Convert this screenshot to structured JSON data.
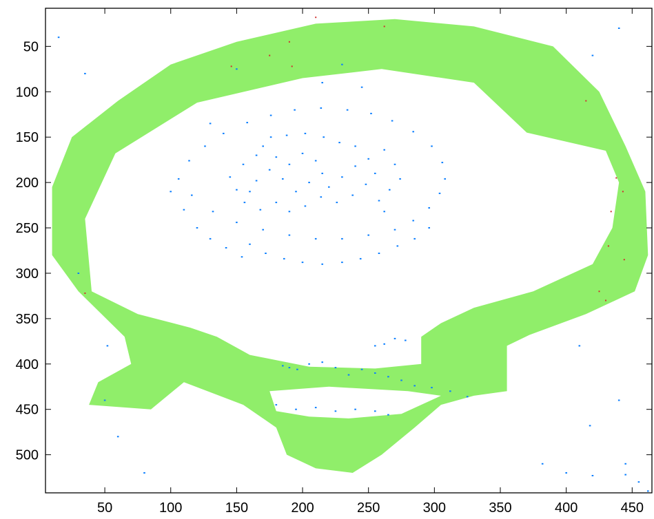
{
  "chart_data": {
    "type": "heatmap",
    "title": "",
    "xlabel": "",
    "ylabel": "",
    "xlim": [
      5,
      465
    ],
    "ylim": [
      542,
      8
    ],
    "x_ticks": [
      50,
      100,
      150,
      200,
      250,
      300,
      350,
      400,
      450
    ],
    "y_ticks": [
      50,
      100,
      150,
      200,
      250,
      300,
      350,
      400,
      450,
      500
    ],
    "grid": false,
    "legend": "none",
    "series": [
      {
        "region": "outer-ring",
        "color": "#90ee6a",
        "outer_boundary": [
          [
            10,
            205
          ],
          [
            25,
            150
          ],
          [
            60,
            110
          ],
          [
            100,
            70
          ],
          [
            150,
            45
          ],
          [
            210,
            25
          ],
          [
            270,
            20
          ],
          [
            330,
            28
          ],
          [
            390,
            50
          ],
          [
            425,
            100
          ],
          [
            445,
            160
          ],
          [
            460,
            210
          ],
          [
            462,
            280
          ],
          [
            452,
            320
          ],
          [
            415,
            345
          ],
          [
            372,
            368
          ],
          [
            355,
            380
          ],
          [
            355,
            430
          ],
          [
            330,
            435
          ],
          [
            305,
            445
          ],
          [
            285,
            470
          ],
          [
            260,
            500
          ],
          [
            238,
            520
          ],
          [
            210,
            515
          ],
          [
            188,
            500
          ],
          [
            180,
            470
          ],
          [
            155,
            445
          ],
          [
            110,
            420
          ],
          [
            85,
            450
          ],
          [
            38,
            445
          ],
          [
            45,
            420
          ],
          [
            70,
            400
          ],
          [
            65,
            370
          ],
          [
            30,
            320
          ],
          [
            10,
            280
          ]
        ],
        "inner_boundary": [
          [
            35,
            240
          ],
          [
            58,
            168
          ],
          [
            120,
            112
          ],
          [
            200,
            85
          ],
          [
            260,
            75
          ],
          [
            330,
            90
          ],
          [
            370,
            145
          ],
          [
            430,
            165
          ],
          [
            440,
            200
          ],
          [
            435,
            250
          ],
          [
            420,
            290
          ],
          [
            375,
            320
          ],
          [
            330,
            338
          ],
          [
            305,
            355
          ],
          [
            290,
            370
          ],
          [
            290,
            400
          ],
          [
            255,
            405
          ],
          [
            205,
            403
          ],
          [
            160,
            390
          ],
          [
            135,
            370
          ],
          [
            115,
            360
          ],
          [
            75,
            345
          ],
          [
            40,
            320
          ]
        ],
        "lower_hole": [
          [
            175,
            430
          ],
          [
            220,
            425
          ],
          [
            280,
            430
          ],
          [
            305,
            435
          ],
          [
            275,
            455
          ],
          [
            235,
            460
          ],
          [
            205,
            458
          ],
          [
            180,
            452
          ]
        ]
      },
      {
        "region": "scattered-edges",
        "color": "#0a7eff",
        "points": [
          [
            106,
            196
          ],
          [
            116,
            214
          ],
          [
            132,
            232
          ],
          [
            150,
            244
          ],
          [
            170,
            252
          ],
          [
            190,
            258
          ],
          [
            210,
            262
          ],
          [
            230,
            262
          ],
          [
            250,
            258
          ],
          [
            270,
            252
          ],
          [
            284,
            242
          ],
          [
            296,
            228
          ],
          [
            304,
            212
          ],
          [
            308,
            196
          ],
          [
            306,
            178
          ],
          [
            298,
            160
          ],
          [
            284,
            144
          ],
          [
            268,
            132
          ],
          [
            252,
            124
          ],
          [
            234,
            120
          ],
          [
            214,
            118
          ],
          [
            194,
            120
          ],
          [
            176,
            126
          ],
          [
            158,
            134
          ],
          [
            140,
            146
          ],
          [
            126,
            160
          ],
          [
            114,
            176
          ],
          [
            170,
            160
          ],
          [
            180,
            172
          ],
          [
            190,
            180
          ],
          [
            200,
            168
          ],
          [
            210,
            176
          ],
          [
            215,
            190
          ],
          [
            205,
            200
          ],
          [
            195,
            210
          ],
          [
            185,
            196
          ],
          [
            175,
            186
          ],
          [
            165,
            198
          ],
          [
            160,
            210
          ],
          [
            220,
            205
          ],
          [
            230,
            194
          ],
          [
            240,
            182
          ],
          [
            250,
            174
          ],
          [
            255,
            190
          ],
          [
            248,
            202
          ],
          [
            238,
            214
          ],
          [
            226,
            222
          ],
          [
            214,
            216
          ],
          [
            202,
            226
          ],
          [
            190,
            232
          ],
          [
            180,
            222
          ],
          [
            168,
            230
          ],
          [
            156,
            222
          ],
          [
            150,
            208
          ],
          [
            145,
            194
          ],
          [
            155,
            180
          ],
          [
            165,
            170
          ],
          [
            176,
            150
          ],
          [
            188,
            148
          ],
          [
            202,
            146
          ],
          [
            216,
            150
          ],
          [
            228,
            156
          ],
          [
            240,
            160
          ],
          [
            262,
            164
          ],
          [
            270,
            180
          ],
          [
            274,
            196
          ],
          [
            266,
            208
          ],
          [
            258,
            220
          ],
          [
            262,
            232
          ],
          [
            160,
            268
          ],
          [
            172,
            278
          ],
          [
            186,
            284
          ],
          [
            200,
            288
          ],
          [
            215,
            290
          ],
          [
            230,
            288
          ],
          [
            244,
            284
          ],
          [
            258,
            278
          ],
          [
            272,
            270
          ],
          [
            285,
            262
          ],
          [
            296,
            250
          ],
          [
            120,
            250
          ],
          [
            130,
            262
          ],
          [
            142,
            272
          ],
          [
            154,
            282
          ],
          [
            110,
            230
          ],
          [
            185,
            402
          ],
          [
            190,
            404
          ],
          [
            196,
            406
          ],
          [
            205,
            400
          ],
          [
            215,
            398
          ],
          [
            225,
            404
          ],
          [
            235,
            412
          ],
          [
            245,
            406
          ],
          [
            255,
            410
          ],
          [
            265,
            414
          ],
          [
            275,
            418
          ],
          [
            285,
            424
          ],
          [
            298,
            426
          ],
          [
            312,
            430
          ],
          [
            325,
            436
          ],
          [
            255,
            380
          ],
          [
            262,
            378
          ],
          [
            270,
            372
          ],
          [
            278,
            374
          ],
          [
            180,
            445
          ],
          [
            195,
            450
          ],
          [
            210,
            448
          ],
          [
            225,
            452
          ],
          [
            240,
            450
          ],
          [
            255,
            452
          ],
          [
            265,
            456
          ],
          [
            50,
            440
          ],
          [
            52,
            380
          ],
          [
            30,
            300
          ],
          [
            100,
            210
          ],
          [
            410,
            380
          ],
          [
            440,
            440
          ],
          [
            445,
            510
          ],
          [
            418,
            468
          ],
          [
            382,
            510
          ],
          [
            400,
            520
          ],
          [
            420,
            523
          ],
          [
            445,
            522
          ],
          [
            455,
            530
          ],
          [
            462,
            540
          ],
          [
            80,
            520
          ],
          [
            60,
            480
          ],
          [
            35,
            80
          ],
          [
            15,
            40
          ],
          [
            420,
            60
          ],
          [
            440,
            30
          ],
          [
            130,
            135
          ],
          [
            150,
            75
          ],
          [
            215,
            90
          ],
          [
            230,
            70
          ],
          [
            245,
            95
          ]
        ]
      },
      {
        "region": "marker-dots",
        "color": "#d03030",
        "points": [
          [
            210,
            18
          ],
          [
            262,
            28
          ],
          [
            190,
            45
          ],
          [
            175,
            60
          ],
          [
            192,
            72
          ],
          [
            146,
            72
          ],
          [
            415,
            110
          ],
          [
            438,
            195
          ],
          [
            443,
            210
          ],
          [
            434,
            232
          ],
          [
            432,
            270
          ],
          [
            444,
            285
          ],
          [
            425,
            320
          ],
          [
            430,
            330
          ],
          [
            35,
            322
          ]
        ]
      }
    ]
  }
}
